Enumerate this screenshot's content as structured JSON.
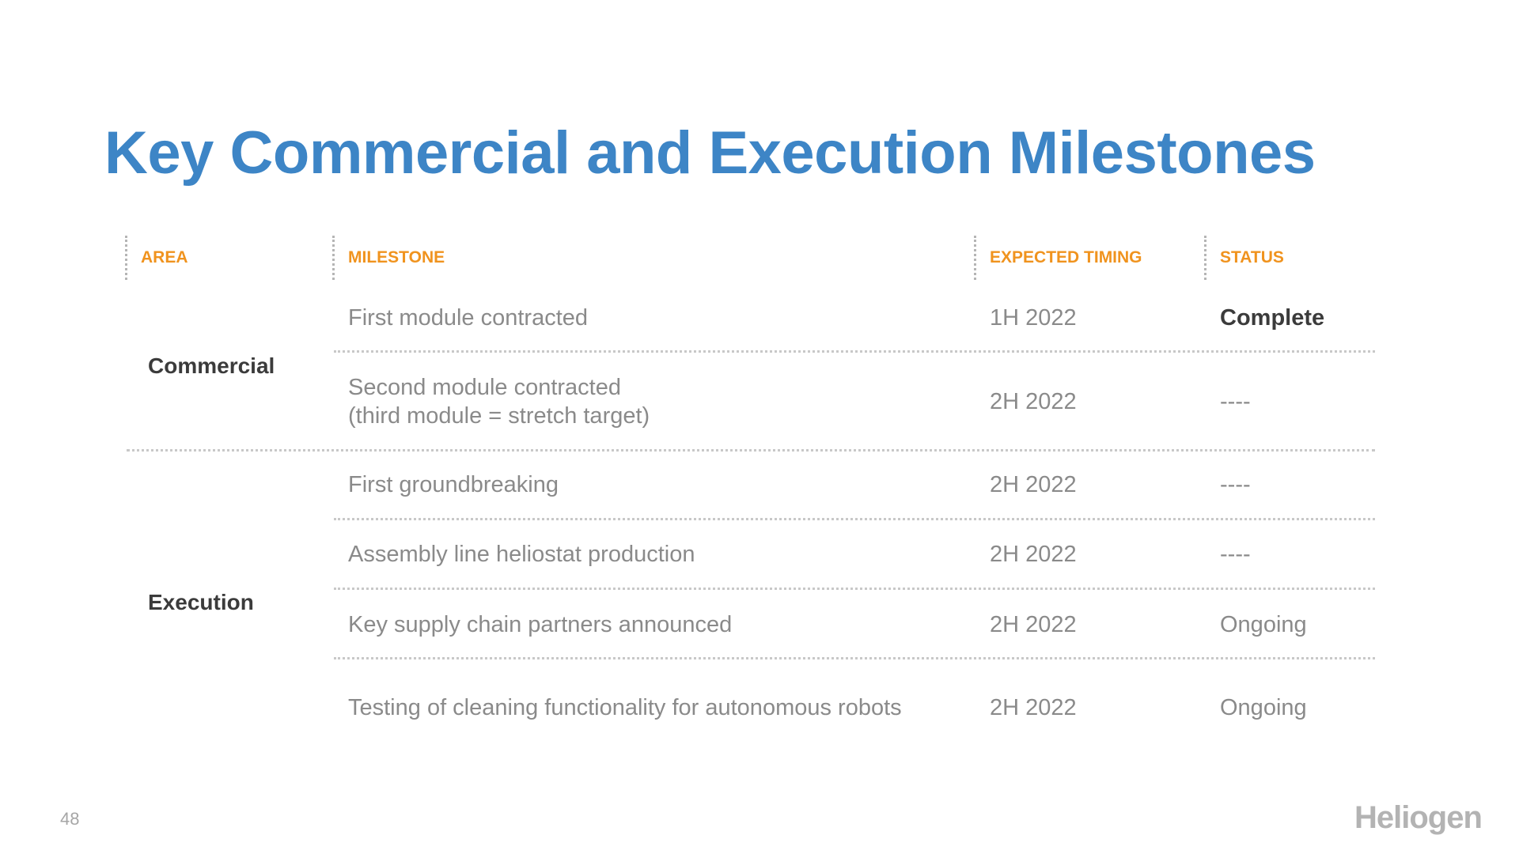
{
  "title": "Key Commercial and Execution Milestones",
  "headers": {
    "area": "AREA",
    "milestone": "MILESTONE",
    "timing": "EXPECTED TIMING",
    "status": "STATUS"
  },
  "areas": {
    "commercial": "Commercial",
    "execution": "Execution"
  },
  "rows": [
    {
      "milestone": "First module contracted",
      "milestone_line2": "",
      "timing": "1H 2022",
      "status": "Complete"
    },
    {
      "milestone": "Second module contracted",
      "milestone_line2": "(third module = stretch target)",
      "timing": "2H 2022",
      "status": "----"
    },
    {
      "milestone": "First groundbreaking",
      "milestone_line2": "",
      "timing": "2H 2022",
      "status": "----"
    },
    {
      "milestone": "Assembly line heliostat production",
      "milestone_line2": "",
      "timing": "2H 2022",
      "status": "----"
    },
    {
      "milestone": "Key supply chain partners announced",
      "milestone_line2": "",
      "timing": "2H 2022",
      "status": "Ongoing"
    },
    {
      "milestone": "Testing of cleaning functionality for autonomous robots",
      "milestone_line2": "",
      "timing": "2H 2022",
      "status": "Ongoing"
    }
  ],
  "footer": {
    "page_number": "48",
    "logo_text": "Heliogen"
  },
  "colors": {
    "title": "#3d85c6",
    "header": "#f0931e",
    "area_text": "#3b3b3b",
    "cell_text": "#8a8a8a"
  }
}
